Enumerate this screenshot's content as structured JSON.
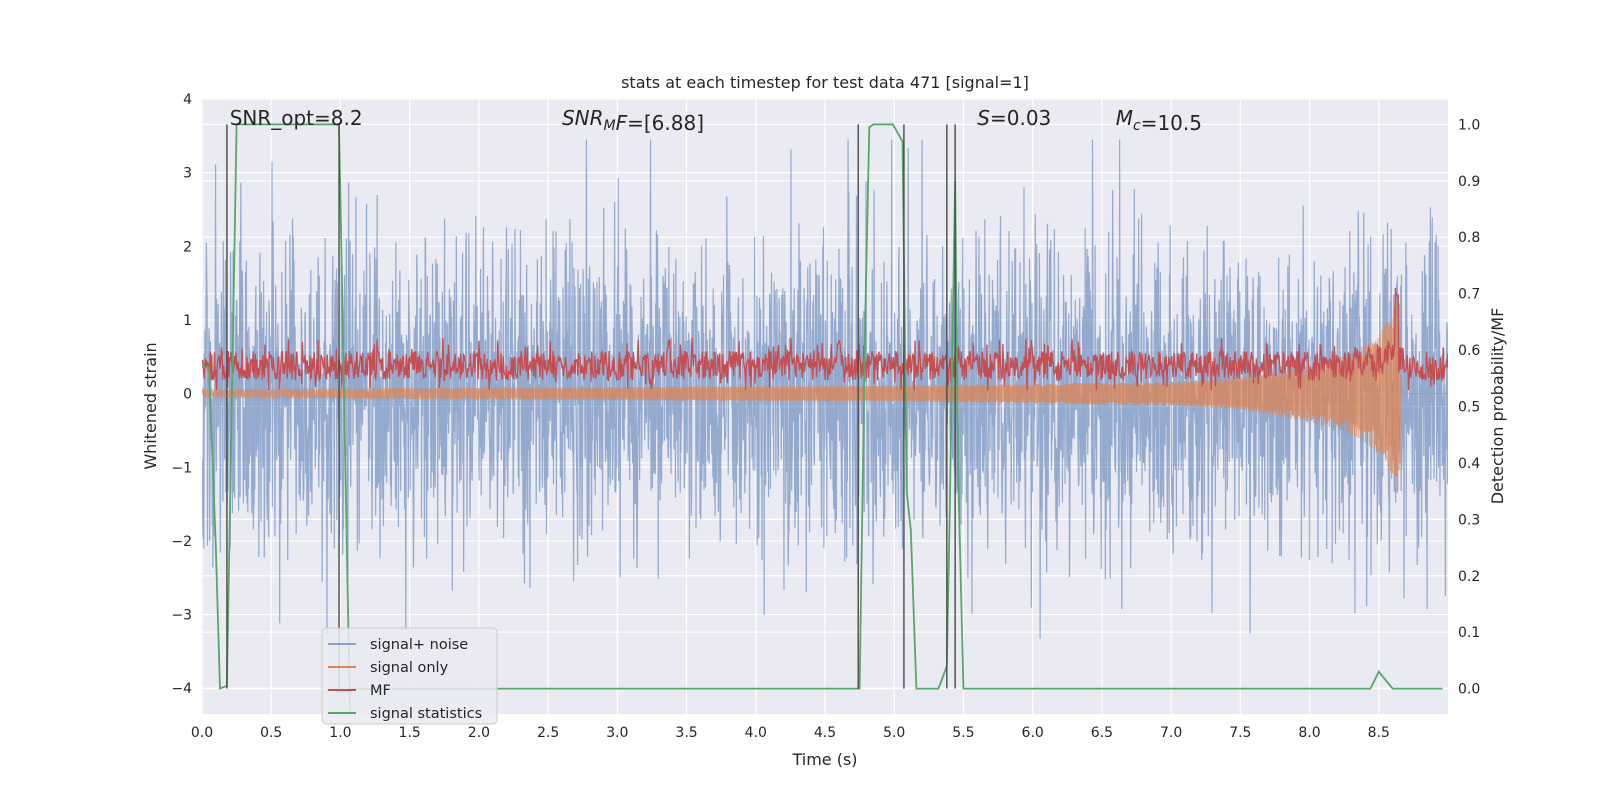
{
  "chart_data": {
    "type": "line",
    "title": "stats at each timestep for test data 471 [signal=1]",
    "xlabel": "Time (s)",
    "ylabel": "Whitened strain",
    "ylabel_right": "Detection probability/MF",
    "xlim": [
      0,
      9.0
    ],
    "ylim": [
      -4.35,
      4.0
    ],
    "ylim_right": [
      -0.045,
      1.045
    ],
    "x_ticks": [
      0.0,
      0.5,
      1.0,
      1.5,
      2.0,
      2.5,
      3.0,
      3.5,
      4.0,
      4.5,
      5.0,
      5.5,
      6.0,
      6.5,
      7.0,
      7.5,
      8.0,
      8.5
    ],
    "x_tick_labels": [
      "0.0",
      "0.5",
      "1.0",
      "1.5",
      "2.0",
      "2.5",
      "3.0",
      "3.5",
      "4.0",
      "4.5",
      "5.0",
      "5.5",
      "6.0",
      "6.5",
      "7.0",
      "7.5",
      "8.0",
      "8.5"
    ],
    "y_ticks": [
      -4,
      -3,
      -2,
      -1,
      0,
      1,
      2,
      3,
      4
    ],
    "y_tick_labels": [
      "−4",
      "−3",
      "−2",
      "−1",
      "0",
      "1",
      "2",
      "3",
      "4"
    ],
    "y_right_ticks": [
      0.0,
      0.1,
      0.2,
      0.3,
      0.4,
      0.5,
      0.6,
      0.7,
      0.8,
      0.9,
      1.0
    ],
    "y_right_tick_labels": [
      "0.0",
      "0.1",
      "0.2",
      "0.3",
      "0.4",
      "0.5",
      "0.6",
      "0.7",
      "0.8",
      "0.9",
      "1.0"
    ],
    "grid": true,
    "legend_position": "lower-left",
    "annotations": [
      {
        "parts": [
          {
            "text": "SNR_opt=8.2"
          }
        ],
        "x": 0.2,
        "y": 3.65
      },
      {
        "parts": [
          {
            "text": "SNR",
            "italic": true
          },
          {
            "text": "M",
            "italic": true,
            "sub": true
          },
          {
            "text": "F",
            "italic": true
          },
          {
            "text": "=[6.88]"
          }
        ],
        "x": 2.6,
        "y": 3.65
      },
      {
        "parts": [
          {
            "text": "S",
            "italic": true
          },
          {
            "text": "=0.03"
          }
        ],
        "x": 5.6,
        "y": 3.65
      },
      {
        "parts": [
          {
            "text": "M",
            "italic": true
          },
          {
            "text": "c",
            "italic": true,
            "sub": true
          },
          {
            "text": "=10.5"
          }
        ],
        "x": 6.6,
        "y": 3.65
      }
    ],
    "series": [
      {
        "name": "signal+ noise",
        "color": "#4c72b0",
        "axis": "left",
        "style": "dense-noise",
        "x_range": [
          0,
          9.0
        ],
        "envelope_sigma": 1.0,
        "peak_range": [
          -4.0,
          3.45
        ]
      },
      {
        "name": "signal only",
        "color": "#dd8452",
        "axis": "left",
        "style": "chirp",
        "chirp_points": [
          [
            0.0,
            0.05
          ],
          [
            1.0,
            0.07
          ],
          [
            2.0,
            0.08
          ],
          [
            3.0,
            0.09
          ],
          [
            4.0,
            0.1
          ],
          [
            5.0,
            0.11
          ],
          [
            6.0,
            0.13
          ],
          [
            7.0,
            0.16
          ],
          [
            7.5,
            0.22
          ],
          [
            8.0,
            0.38
          ],
          [
            8.3,
            0.55
          ],
          [
            8.5,
            0.8
          ],
          [
            8.6,
            1.1
          ],
          [
            8.65,
            1.45
          ],
          [
            8.66,
            0.0
          ],
          [
            9.0,
            0.0
          ]
        ]
      },
      {
        "name": "MF",
        "color": "#c44e52",
        "axis": "right",
        "style": "noisy-band",
        "mean": 0.57,
        "spread": 0.02,
        "spikes": [
          [
            3.37,
            0.62
          ],
          [
            4.6,
            0.62
          ],
          [
            8.63,
            0.7
          ]
        ]
      },
      {
        "name": "signal statistics",
        "color": "#55a868",
        "axis": "right",
        "points": [
          [
            0.0,
            0.57
          ],
          [
            0.05,
            0.57
          ],
          [
            0.1,
            0.25
          ],
          [
            0.13,
            0.0
          ],
          [
            0.18,
            0.005
          ],
          [
            0.25,
            1.0
          ],
          [
            0.99,
            1.0
          ],
          [
            1.05,
            0.2
          ],
          [
            1.07,
            -0.045
          ]
        ],
        "points_2": [
          [
            1.05,
            0.0
          ],
          [
            4.75,
            0.0
          ],
          [
            4.79,
            0.65
          ],
          [
            4.82,
            0.995
          ],
          [
            4.85,
            1.0
          ],
          [
            4.99,
            1.0
          ],
          [
            5.06,
            0.97
          ],
          [
            5.09,
            0.35
          ],
          [
            5.12,
            0.28
          ],
          [
            5.16,
            0.0
          ],
          [
            5.32,
            0.0
          ],
          [
            5.38,
            0.04
          ],
          [
            5.4,
            0.3
          ],
          [
            5.44,
            0.9
          ],
          [
            5.46,
            0.4
          ],
          [
            5.5,
            0.0
          ],
          [
            8.44,
            0.0
          ],
          [
            8.5,
            0.03
          ],
          [
            8.6,
            0.0
          ],
          [
            8.96,
            0.0
          ]
        ]
      }
    ],
    "vertical_lines": [
      0.18,
      0.99,
      4.74,
      5.07,
      5.38,
      5.44
    ],
    "vertical_line_color": "#4a4a4a"
  }
}
